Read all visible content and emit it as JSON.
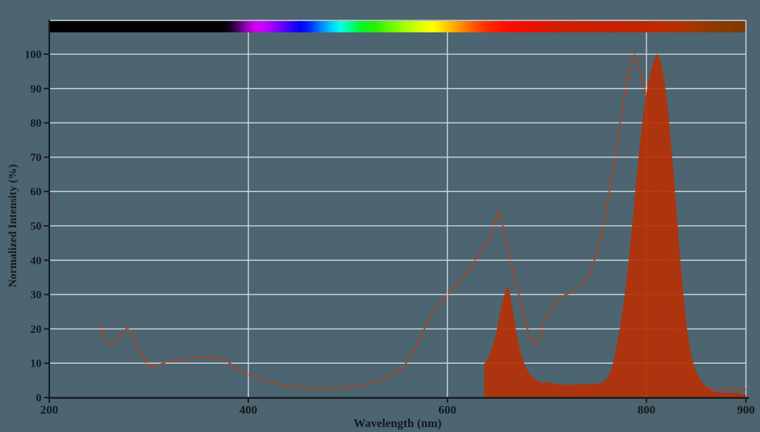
{
  "chart_data": {
    "type": "area",
    "title": "",
    "xlabel": "Wavelength (nm)",
    "ylabel": "Normalized Intensity (%)",
    "xlim": [
      200,
      900
    ],
    "ylim": [
      0,
      100
    ],
    "x_ticks": [
      200,
      400,
      600,
      800,
      900
    ],
    "y_ticks": [
      0,
      10,
      20,
      30,
      40,
      50,
      60,
      70,
      80,
      90,
      100
    ],
    "x_gridlines": [
      400,
      600,
      800,
      900
    ],
    "grid": true,
    "legend": null,
    "colors": {
      "background": "#4c6570",
      "gridline": "#d2cfd6",
      "axis": "#15191c",
      "dashed_line": "#c43c10",
      "filled_area": "#b43108",
      "bar_top_border": "#d8d5da"
    },
    "series": [
      {
        "name": "dashed-spectrum-curve",
        "style": "dashed-line",
        "color": "#c43c10",
        "points": [
          [
            250,
            21.5
          ],
          [
            253,
            19.2
          ],
          [
            256,
            17.2
          ],
          [
            259,
            15.8
          ],
          [
            262,
            15.3
          ],
          [
            265,
            15.7
          ],
          [
            268,
            16.6
          ],
          [
            272,
            18.2
          ],
          [
            276,
            19.6
          ],
          [
            279,
            20.4
          ],
          [
            282,
            19.2
          ],
          [
            285,
            16.8
          ],
          [
            288,
            14.6
          ],
          [
            292,
            13.0
          ],
          [
            295,
            11.4
          ],
          [
            298,
            9.6
          ],
          [
            301,
            8.8
          ],
          [
            304,
            9.7
          ],
          [
            308,
            9.3
          ],
          [
            312,
            9.7
          ],
          [
            318,
            10.3
          ],
          [
            325,
            10.9
          ],
          [
            333,
            11.3
          ],
          [
            342,
            11.6
          ],
          [
            351,
            11.8
          ],
          [
            360,
            11.8
          ],
          [
            368,
            11.5
          ],
          [
            376,
            10.8
          ],
          [
            383,
            9.7
          ],
          [
            390,
            8.3
          ],
          [
            397,
            7.1
          ],
          [
            405,
            6.2
          ],
          [
            413,
            5.3
          ],
          [
            421,
            4.6
          ],
          [
            430,
            3.9
          ],
          [
            439,
            3.4
          ],
          [
            448,
            3.0
          ],
          [
            458,
            2.7
          ],
          [
            468,
            2.5
          ],
          [
            478,
            2.5
          ],
          [
            488,
            2.6
          ],
          [
            498,
            2.9
          ],
          [
            508,
            3.3
          ],
          [
            518,
            3.9
          ],
          [
            528,
            4.6
          ],
          [
            538,
            5.6
          ],
          [
            547,
            7.0
          ],
          [
            555,
            8.8
          ],
          [
            562,
            11.2
          ],
          [
            568,
            14.2
          ],
          [
            574,
            18.0
          ],
          [
            580,
            22.0
          ],
          [
            586,
            25.0
          ],
          [
            592,
            27.3
          ],
          [
            598,
            29.2
          ],
          [
            604,
            31.0
          ],
          [
            610,
            33.0
          ],
          [
            616,
            35.3
          ],
          [
            622,
            37.5
          ],
          [
            628,
            39.8
          ],
          [
            634,
            42.2
          ],
          [
            639,
            44.6
          ],
          [
            643,
            47.0
          ],
          [
            646,
            49.5
          ],
          [
            649,
            52.0
          ],
          [
            651,
            54.0
          ],
          [
            653,
            52.8
          ],
          [
            656,
            49.8
          ],
          [
            659,
            46.0
          ],
          [
            662,
            41.8
          ],
          [
            665,
            37.8
          ],
          [
            668,
            34.2
          ],
          [
            671,
            30.8
          ],
          [
            674,
            27.4
          ],
          [
            677,
            23.8
          ],
          [
            680,
            20.4
          ],
          [
            683,
            17.4
          ],
          [
            686,
            15.9
          ],
          [
            689,
            15.4
          ],
          [
            692,
            16.8
          ],
          [
            695,
            19.8
          ],
          [
            698,
            22.4
          ],
          [
            702,
            24.6
          ],
          [
            706,
            26.4
          ],
          [
            710,
            28.0
          ],
          [
            714,
            29.2
          ],
          [
            718,
            29.9
          ],
          [
            722,
            30.3
          ],
          [
            726,
            30.7
          ],
          [
            730,
            31.4
          ],
          [
            734,
            32.4
          ],
          [
            738,
            33.8
          ],
          [
            742,
            35.8
          ],
          [
            746,
            38.4
          ],
          [
            750,
            41.8
          ],
          [
            753,
            45.0
          ],
          [
            756,
            49.0
          ],
          [
            759,
            53.5
          ],
          [
            762,
            58.5
          ],
          [
            765,
            63.8
          ],
          [
            768,
            69.2
          ],
          [
            771,
            74.8
          ],
          [
            774,
            80.5
          ],
          [
            777,
            86.0
          ],
          [
            780,
            91.2
          ],
          [
            782,
            94.6
          ],
          [
            784,
            97.4
          ],
          [
            786,
            99.3
          ],
          [
            788,
            99.8
          ],
          [
            790,
            98.6
          ],
          [
            793,
            95.8
          ],
          [
            796,
            92.4
          ],
          [
            799,
            88.6
          ],
          [
            802,
            84.0
          ],
          [
            805,
            78.0
          ],
          [
            808,
            70.5
          ],
          [
            812,
            61.0
          ],
          [
            816,
            50.5
          ],
          [
            820,
            40.0
          ],
          [
            825,
            29.5
          ],
          [
            830,
            20.8
          ],
          [
            835,
            14.0
          ],
          [
            840,
            9.2
          ],
          [
            846,
            5.8
          ],
          [
            852,
            3.9
          ],
          [
            858,
            3.0
          ],
          [
            864,
            2.5
          ],
          [
            870,
            2.3
          ],
          [
            876,
            2.1
          ],
          [
            882,
            2.2
          ],
          [
            887,
            2.8
          ],
          [
            891,
            2.4
          ],
          [
            895,
            2.1
          ],
          [
            900,
            2.4
          ]
        ]
      },
      {
        "name": "filled-spectrum-area",
        "style": "filled-area",
        "color": "#b43108",
        "points": [
          [
            637,
            0
          ],
          [
            637,
            9.9
          ],
          [
            639,
            10.6
          ],
          [
            641,
            11.6
          ],
          [
            643,
            13.0
          ],
          [
            645,
            14.6
          ],
          [
            647,
            16.6
          ],
          [
            649,
            19.0
          ],
          [
            651,
            21.8
          ],
          [
            653,
            24.6
          ],
          [
            655,
            27.2
          ],
          [
            657,
            29.6
          ],
          [
            659,
            31.6
          ],
          [
            660,
            32.4
          ],
          [
            661,
            32.1
          ],
          [
            663,
            30.2
          ],
          [
            665,
            26.8
          ],
          [
            667,
            23.2
          ],
          [
            669,
            19.6
          ],
          [
            671,
            16.6
          ],
          [
            673,
            14.0
          ],
          [
            675,
            12.0
          ],
          [
            677,
            10.2
          ],
          [
            679,
            8.7
          ],
          [
            682,
            7.2
          ],
          [
            685,
            6.1
          ],
          [
            688,
            5.3
          ],
          [
            692,
            4.7
          ],
          [
            696,
            4.3
          ],
          [
            700,
            4.4
          ],
          [
            702,
            4.7
          ],
          [
            704,
            4.3
          ],
          [
            708,
            4.0
          ],
          [
            712,
            3.8
          ],
          [
            716,
            3.7
          ],
          [
            720,
            3.8
          ],
          [
            724,
            3.7
          ],
          [
            728,
            3.8
          ],
          [
            732,
            3.9
          ],
          [
            736,
            3.8
          ],
          [
            740,
            3.9
          ],
          [
            744,
            4.0
          ],
          [
            748,
            4.0
          ],
          [
            752,
            4.1
          ],
          [
            755,
            4.3
          ],
          [
            758,
            4.8
          ],
          [
            760,
            5.4
          ],
          [
            762,
            6.4
          ],
          [
            764,
            7.8
          ],
          [
            766,
            9.6
          ],
          [
            768,
            12.0
          ],
          [
            770,
            14.8
          ],
          [
            772,
            18.0
          ],
          [
            774,
            21.6
          ],
          [
            776,
            25.4
          ],
          [
            778,
            29.6
          ],
          [
            780,
            34.2
          ],
          [
            782,
            39.4
          ],
          [
            784,
            45.0
          ],
          [
            786,
            51.0
          ],
          [
            788,
            57.4
          ],
          [
            790,
            63.6
          ],
          [
            792,
            69.6
          ],
          [
            794,
            75.2
          ],
          [
            796,
            80.4
          ],
          [
            798,
            85.0
          ],
          [
            800,
            88.8
          ],
          [
            802,
            92.0
          ],
          [
            804,
            94.6
          ],
          [
            806,
            96.6
          ],
          [
            808,
            98.4
          ],
          [
            810,
            99.8
          ],
          [
            811,
            100.0
          ],
          [
            813,
            99.2
          ],
          [
            815,
            97.2
          ],
          [
            817,
            94.2
          ],
          [
            819,
            90.4
          ],
          [
            821,
            85.6
          ],
          [
            823,
            79.8
          ],
          [
            825,
            73.2
          ],
          [
            827,
            66.2
          ],
          [
            829,
            58.8
          ],
          [
            831,
            51.4
          ],
          [
            833,
            44.0
          ],
          [
            835,
            37.0
          ],
          [
            837,
            30.6
          ],
          [
            839,
            24.8
          ],
          [
            841,
            19.8
          ],
          [
            843,
            15.8
          ],
          [
            845,
            12.6
          ],
          [
            847,
            10.2
          ],
          [
            849,
            8.3
          ],
          [
            851,
            6.9
          ],
          [
            854,
            5.3
          ],
          [
            857,
            4.2
          ],
          [
            860,
            3.2
          ],
          [
            862,
            2.4
          ],
          [
            863,
            3.1
          ],
          [
            865,
            2.0
          ],
          [
            868,
            1.7
          ],
          [
            872,
            1.5
          ],
          [
            877,
            1.4
          ],
          [
            882,
            1.3
          ],
          [
            886,
            1.3
          ],
          [
            890,
            1.5
          ],
          [
            893,
            1.2
          ],
          [
            896,
            1.0
          ],
          [
            900,
            0.8
          ],
          [
            900,
            0
          ]
        ]
      }
    ],
    "spectrum_bar": {
      "description": "wavelength-to-color strip across top of plot",
      "range_nm": [
        200,
        900
      ],
      "stops": [
        {
          "nm": 200,
          "color": "#000000"
        },
        {
          "nm": 372,
          "color": "#000000"
        },
        {
          "nm": 382,
          "color": "#16001f"
        },
        {
          "nm": 391,
          "color": "#5a0070"
        },
        {
          "nm": 399,
          "color": "#9c00c0"
        },
        {
          "nm": 407,
          "color": "#d200ea"
        },
        {
          "nm": 415,
          "color": "#cb00ff"
        },
        {
          "nm": 425,
          "color": "#9900ff"
        },
        {
          "nm": 435,
          "color": "#6400ff"
        },
        {
          "nm": 444,
          "color": "#2d00ff"
        },
        {
          "nm": 453,
          "color": "#0000ff"
        },
        {
          "nm": 463,
          "color": "#0030ff"
        },
        {
          "nm": 473,
          "color": "#0080ff"
        },
        {
          "nm": 483,
          "color": "#00c8ff"
        },
        {
          "nm": 493,
          "color": "#00ffe8"
        },
        {
          "nm": 503,
          "color": "#00ff8c"
        },
        {
          "nm": 514,
          "color": "#00f722"
        },
        {
          "nm": 528,
          "color": "#2aee00"
        },
        {
          "nm": 543,
          "color": "#63fa00"
        },
        {
          "nm": 558,
          "color": "#a4ff00"
        },
        {
          "nm": 573,
          "color": "#dcff00"
        },
        {
          "nm": 586,
          "color": "#ffff00"
        },
        {
          "nm": 597,
          "color": "#ffd400"
        },
        {
          "nm": 607,
          "color": "#ffab00"
        },
        {
          "nm": 617,
          "color": "#ff8200"
        },
        {
          "nm": 628,
          "color": "#ff5200"
        },
        {
          "nm": 642,
          "color": "#ff2a00"
        },
        {
          "nm": 658,
          "color": "#ff1000"
        },
        {
          "nm": 672,
          "color": "#f70c00"
        },
        {
          "nm": 688,
          "color": "#e81000"
        },
        {
          "nm": 705,
          "color": "#d61900"
        },
        {
          "nm": 730,
          "color": "#c92000"
        },
        {
          "nm": 770,
          "color": "#c42100"
        },
        {
          "nm": 815,
          "color": "#bb2a00"
        },
        {
          "nm": 845,
          "color": "#a63400"
        },
        {
          "nm": 868,
          "color": "#8d3a00"
        },
        {
          "nm": 885,
          "color": "#823b00"
        },
        {
          "nm": 900,
          "color": "#7b3900"
        }
      ]
    }
  }
}
